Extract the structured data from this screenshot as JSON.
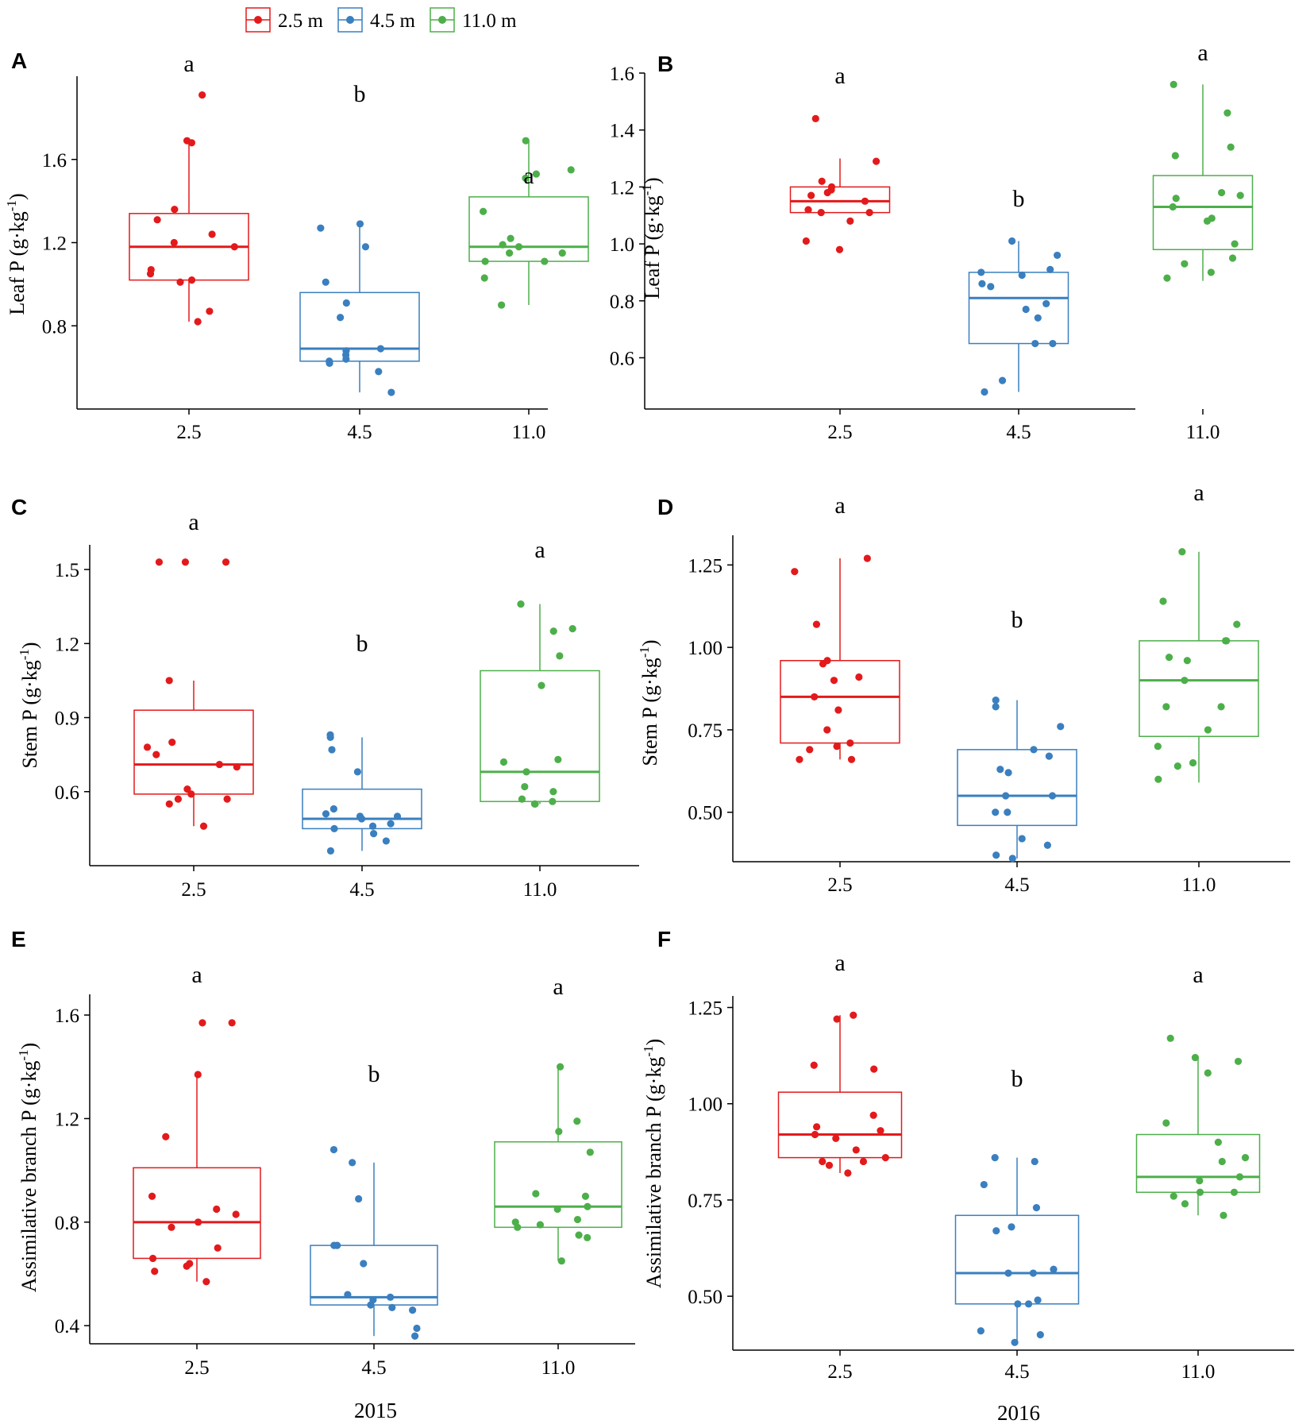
{
  "legend": [
    {
      "label": "2.5 m",
      "color": "#e31a1c"
    },
    {
      "label": "4.5 m",
      "color": "#3a7fbf"
    },
    {
      "label": "11.0 m",
      "color": "#4daf4a"
    }
  ],
  "chart_data": [
    {
      "id": "A",
      "letter": "A",
      "type": "box",
      "ylabel_main": "Leaf P",
      "ylabel_unit": "(g·kg",
      "ylabel_sup": "-1",
      "ylabel_close": ")",
      "ylim": [
        0.4,
        2.0
      ],
      "yticks": [
        "0.8",
        "1.2",
        "1.6"
      ],
      "categories": [
        "2.5",
        "4.5",
        "11.0"
      ],
      "boxes": [
        {
          "q1": 1.02,
          "median": 1.18,
          "q3": 1.34,
          "whisker_low": 0.82,
          "whisker_high": 1.69,
          "sig": "a",
          "points": [
            1.91,
            1.69,
            1.68,
            1.36,
            1.31,
            1.24,
            1.2,
            1.18,
            1.07,
            1.05,
            1.02,
            1.01,
            0.87,
            0.82
          ]
        },
        {
          "q1": 0.63,
          "median": 0.69,
          "q3": 0.96,
          "whisker_low": 0.48,
          "whisker_high": 1.28,
          "sig": "b",
          "points": [
            1.29,
            1.27,
            1.18,
            1.01,
            0.91,
            0.84,
            0.69,
            0.68,
            0.66,
            0.64,
            0.63,
            0.62,
            0.58,
            0.48
          ]
        },
        {
          "q1": 1.11,
          "median": 1.18,
          "q3": 1.42,
          "whisker_low": 0.9,
          "whisker_high": 1.69,
          "sig": "a",
          "points": [
            1.69,
            1.55,
            1.53,
            1.51,
            1.35,
            1.22,
            1.19,
            1.18,
            1.15,
            1.15,
            1.11,
            1.11,
            1.03,
            0.9
          ]
        }
      ]
    },
    {
      "id": "B",
      "letter": "B",
      "type": "box",
      "ylabel_main": "Leaf P",
      "ylabel_unit": "(g·kg",
      "ylabel_sup": "-1",
      "ylabel_close": ")",
      "ylim": [
        0.42,
        1.6
      ],
      "yticks": [
        "0.6",
        "0.8",
        "1.0",
        "1.2",
        "1.4",
        "1.6"
      ],
      "categories": [
        "2.5",
        "4.5",
        "11.0"
      ],
      "boxes": [
        {
          "q1": 1.11,
          "median": 1.15,
          "q3": 1.2,
          "whisker_low": 1.11,
          "whisker_high": 1.3,
          "sig": "a",
          "points": [
            1.44,
            1.29,
            1.22,
            1.2,
            1.19,
            1.18,
            1.17,
            1.15,
            1.12,
            1.11,
            1.11,
            1.08,
            1.01,
            0.98
          ]
        },
        {
          "q1": 0.65,
          "median": 0.81,
          "q3": 0.9,
          "whisker_low": 0.48,
          "whisker_high": 1.01,
          "sig": "b",
          "points": [
            1.01,
            0.96,
            0.91,
            0.9,
            0.89,
            0.86,
            0.85,
            0.79,
            0.77,
            0.74,
            0.65,
            0.65,
            0.52,
            0.48
          ]
        },
        {
          "q1": 0.98,
          "median": 1.13,
          "q3": 1.24,
          "whisker_low": 0.87,
          "whisker_high": 1.56,
          "sig": "a",
          "points": [
            1.56,
            1.46,
            1.34,
            1.31,
            1.18,
            1.17,
            1.16,
            1.13,
            1.09,
            1.08,
            1.0,
            0.95,
            0.93,
            0.9,
            0.88
          ]
        }
      ]
    },
    {
      "id": "C",
      "letter": "C",
      "type": "box",
      "ylabel_main": "Stem P",
      "ylabel_unit": "(g·kg",
      "ylabel_sup": "-1",
      "ylabel_close": ")",
      "ylim": [
        0.3,
        1.6
      ],
      "yticks": [
        "0.6",
        "0.9",
        "1.2",
        "1.5"
      ],
      "categories": [
        "2.5",
        "4.5",
        "11.0"
      ],
      "boxes": [
        {
          "q1": 0.59,
          "median": 0.71,
          "q3": 0.93,
          "whisker_low": 0.46,
          "whisker_high": 1.05,
          "sig": "a",
          "points": [
            1.53,
            1.53,
            1.53,
            1.05,
            0.8,
            0.78,
            0.75,
            0.71,
            0.7,
            0.61,
            0.59,
            0.57,
            0.57,
            0.55,
            0.46
          ]
        },
        {
          "q1": 0.45,
          "median": 0.49,
          "q3": 0.61,
          "whisker_low": 0.36,
          "whisker_high": 0.82,
          "sig": "b",
          "points": [
            0.83,
            0.82,
            0.77,
            0.68,
            0.53,
            0.51,
            0.5,
            0.5,
            0.49,
            0.47,
            0.46,
            0.45,
            0.43,
            0.4,
            0.36
          ]
        },
        {
          "q1": 0.56,
          "median": 0.68,
          "q3": 1.09,
          "whisker_low": 0.55,
          "whisker_high": 1.36,
          "sig": "a",
          "points": [
            1.36,
            1.26,
            1.25,
            1.15,
            1.03,
            0.73,
            0.72,
            0.68,
            0.62,
            0.6,
            0.57,
            0.56,
            0.55,
            0.55
          ]
        }
      ]
    },
    {
      "id": "D",
      "letter": "D",
      "type": "box",
      "ylabel_main": "Stem P",
      "ylabel_unit": "(g·kg",
      "ylabel_sup": "-1",
      "ylabel_close": ")",
      "ylim": [
        0.35,
        1.34
      ],
      "yticks": [
        "0.50",
        "0.75",
        "1.00",
        "1.25"
      ],
      "categories": [
        "2.5",
        "4.5",
        "11.0"
      ],
      "boxes": [
        {
          "q1": 0.71,
          "median": 0.85,
          "q3": 0.96,
          "whisker_low": 0.66,
          "whisker_high": 1.27,
          "sig": "a",
          "points": [
            1.27,
            1.23,
            1.07,
            0.96,
            0.95,
            0.91,
            0.9,
            0.85,
            0.81,
            0.75,
            0.71,
            0.7,
            0.69,
            0.66,
            0.66
          ]
        },
        {
          "q1": 0.46,
          "median": 0.55,
          "q3": 0.69,
          "whisker_low": 0.36,
          "whisker_high": 0.84,
          "sig": "b",
          "points": [
            0.84,
            0.82,
            0.76,
            0.69,
            0.67,
            0.63,
            0.62,
            0.55,
            0.55,
            0.5,
            0.5,
            0.42,
            0.4,
            0.37,
            0.36
          ]
        },
        {
          "q1": 0.73,
          "median": 0.9,
          "q3": 1.02,
          "whisker_low": 0.59,
          "whisker_high": 1.29,
          "sig": "a",
          "points": [
            1.29,
            1.14,
            1.07,
            1.02,
            1.02,
            0.97,
            0.96,
            0.9,
            0.82,
            0.82,
            0.75,
            0.7,
            0.65,
            0.64,
            0.6
          ]
        }
      ]
    },
    {
      "id": "E",
      "letter": "E",
      "type": "box",
      "ylabel_main": "Assimilative branch P",
      "ylabel_unit": "(g·kg",
      "ylabel_sup": "-1",
      "ylabel_close": ")",
      "ylim": [
        0.33,
        1.68
      ],
      "yticks": [
        "0.4",
        "0.8",
        "1.2",
        "1.6"
      ],
      "categories": [
        "2.5",
        "4.5",
        "11.0"
      ],
      "boxes": [
        {
          "q1": 0.66,
          "median": 0.8,
          "q3": 1.01,
          "whisker_low": 0.57,
          "whisker_high": 1.37,
          "sig": "a",
          "points": [
            1.57,
            1.57,
            1.37,
            1.13,
            0.9,
            0.85,
            0.83,
            0.8,
            0.78,
            0.7,
            0.66,
            0.64,
            0.63,
            0.61,
            0.57
          ]
        },
        {
          "q1": 0.48,
          "median": 0.51,
          "q3": 0.71,
          "whisker_low": 0.36,
          "whisker_high": 1.03,
          "sig": "b",
          "points": [
            1.08,
            1.03,
            0.89,
            0.71,
            0.71,
            0.64,
            0.52,
            0.51,
            0.5,
            0.48,
            0.47,
            0.46,
            0.39,
            0.36
          ]
        },
        {
          "q1": 0.78,
          "median": 0.86,
          "q3": 1.11,
          "whisker_low": 0.65,
          "whisker_high": 1.4,
          "sig": "a",
          "points": [
            1.4,
            1.19,
            1.15,
            1.07,
            0.91,
            0.9,
            0.86,
            0.85,
            0.81,
            0.8,
            0.79,
            0.78,
            0.75,
            0.74,
            0.65
          ]
        }
      ]
    },
    {
      "id": "F",
      "letter": "F",
      "type": "box",
      "ylabel_main": "Assimilative branch P",
      "ylabel_unit": "(g·kg",
      "ylabel_sup": "-1",
      "ylabel_close": ")",
      "ylim": [
        0.36,
        1.28
      ],
      "yticks": [
        "0.50",
        "0.75",
        "1.00",
        "1.25"
      ],
      "categories": [
        "2.5",
        "4.5",
        "11.0"
      ],
      "boxes": [
        {
          "q1": 0.86,
          "median": 0.92,
          "q3": 1.03,
          "whisker_low": 0.82,
          "whisker_high": 1.23,
          "sig": "a",
          "points": [
            1.23,
            1.22,
            1.1,
            1.09,
            0.97,
            0.94,
            0.93,
            0.92,
            0.91,
            0.88,
            0.86,
            0.85,
            0.85,
            0.84,
            0.82
          ]
        },
        {
          "q1": 0.48,
          "median": 0.56,
          "q3": 0.71,
          "whisker_low": 0.38,
          "whisker_high": 0.86,
          "sig": "b",
          "points": [
            0.86,
            0.85,
            0.79,
            0.73,
            0.68,
            0.67,
            0.57,
            0.56,
            0.56,
            0.49,
            0.48,
            0.48,
            0.41,
            0.4,
            0.38
          ]
        },
        {
          "q1": 0.77,
          "median": 0.81,
          "q3": 0.92,
          "whisker_low": 0.71,
          "whisker_high": 1.12,
          "sig": "a",
          "points": [
            1.17,
            1.12,
            1.11,
            1.08,
            0.95,
            0.9,
            0.86,
            0.85,
            0.81,
            0.8,
            0.77,
            0.77,
            0.76,
            0.74,
            0.71
          ]
        }
      ]
    }
  ],
  "years": {
    "left": "2015",
    "right": "2016"
  }
}
